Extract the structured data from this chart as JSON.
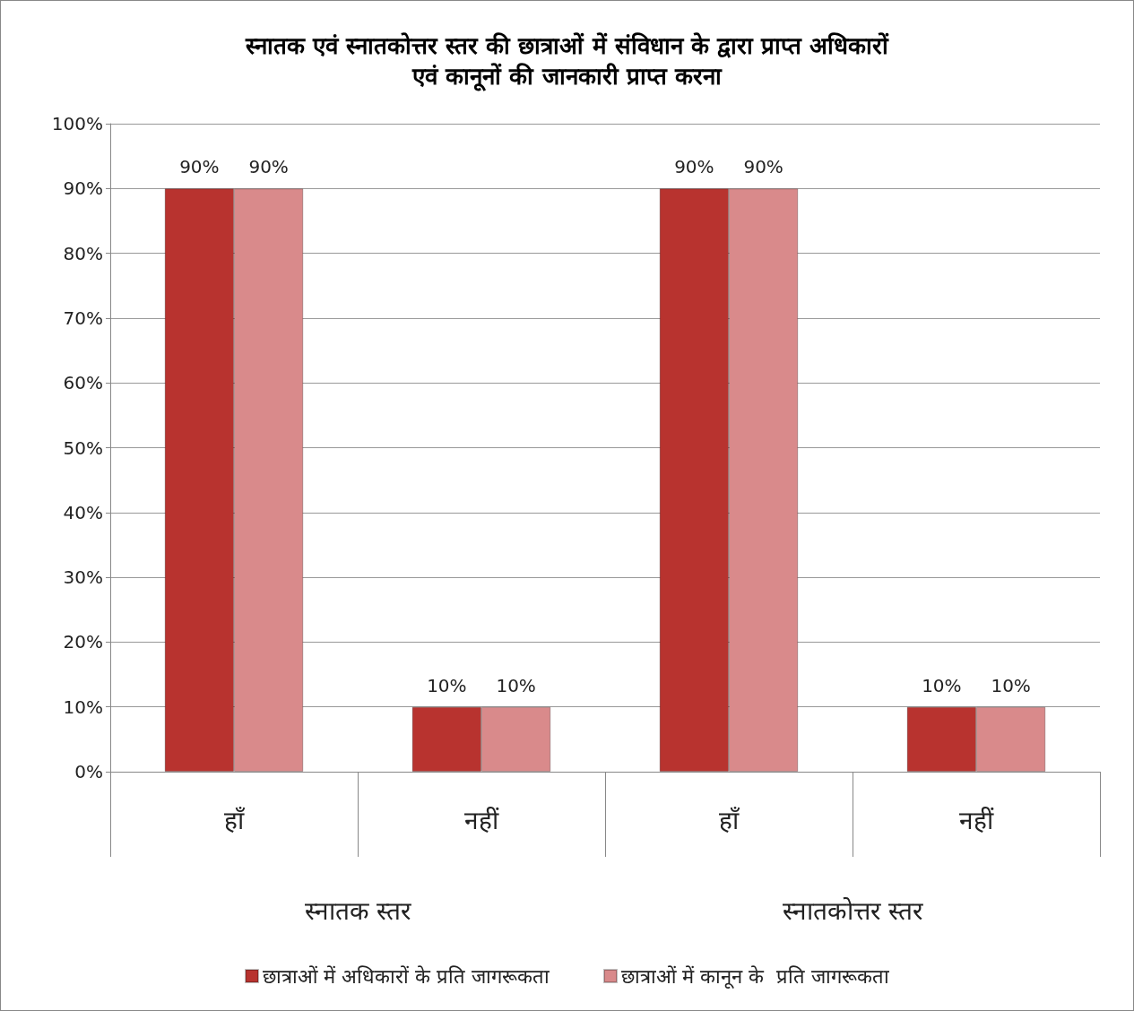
{
  "chart_data": {
    "type": "bar",
    "title": "स्नातक एवं स्नातकोत्तर स्तर की छात्राओं में संविधान के द्वारा प्राप्त अधिकारों\nएवं कानूनों की जानकारी प्राप्त करना",
    "categories": [
      "हाँ",
      "नहीं",
      "हाँ",
      "नहीं"
    ],
    "series": [
      {
        "name": "छात्राओं में अधिकारों के प्रति जागरूकता",
        "color": "#b8332f",
        "values": [
          90,
          10,
          90,
          10
        ],
        "value_labels": [
          "90%",
          "10%",
          "90%",
          "10%"
        ]
      },
      {
        "name": "छात्राओं में कानून के  प्रति जागरूकता",
        "color": "#d98a8b",
        "values": [
          90,
          10,
          90,
          10
        ],
        "value_labels": [
          "90%",
          "10%",
          "90%",
          "10%"
        ]
      }
    ],
    "ylim": [
      0,
      100
    ],
    "yticks": [
      {
        "value": 0,
        "label": "0%"
      },
      {
        "value": 10,
        "label": "10%"
      },
      {
        "value": 20,
        "label": "20%"
      },
      {
        "value": 30,
        "label": "30%"
      },
      {
        "value": 40,
        "label": "40%"
      },
      {
        "value": 50,
        "label": "50%"
      },
      {
        "value": 60,
        "label": "60%"
      },
      {
        "value": 70,
        "label": "70%"
      },
      {
        "value": 80,
        "label": "80%"
      },
      {
        "value": 90,
        "label": "90%"
      },
      {
        "value": 100,
        "label": "100%"
      }
    ],
    "annotations": [
      "स्नातक स्तर",
      "स्नातकोत्तर स्तर"
    ],
    "grid": "y",
    "legend": "bottom"
  }
}
